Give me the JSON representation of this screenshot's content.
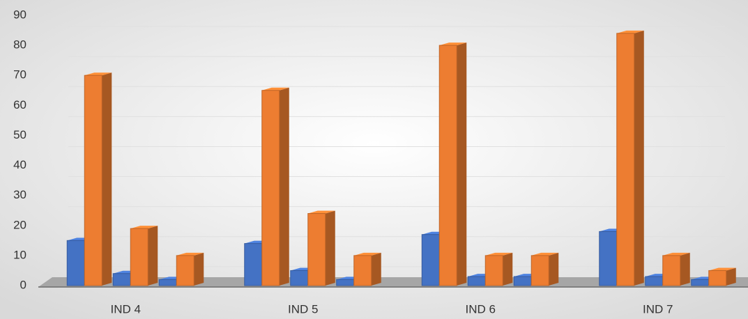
{
  "chart_data": {
    "type": "bar3d",
    "categories": [
      "IND 4",
      "IND 5",
      "IND 6",
      "IND 7"
    ],
    "series": [
      {
        "color": "#4472c4",
        "values": [
          15,
          14,
          17,
          18
        ]
      },
      {
        "color": "#ed7d31",
        "values": [
          70,
          65,
          80,
          84
        ]
      },
      {
        "color": "#4472c4",
        "values": [
          4,
          5,
          3,
          3
        ]
      },
      {
        "color": "#ed7d31",
        "values": [
          19,
          24,
          10,
          10
        ]
      },
      {
        "color": "#4472c4",
        "values": [
          2,
          2,
          3,
          2
        ]
      },
      {
        "color": "#ed7d31",
        "values": [
          10,
          10,
          10,
          5
        ]
      }
    ],
    "ylim": [
      0,
      90
    ],
    "yticks": [
      0,
      10,
      20,
      30,
      40,
      50,
      60,
      70,
      80,
      90
    ],
    "grid": true
  }
}
